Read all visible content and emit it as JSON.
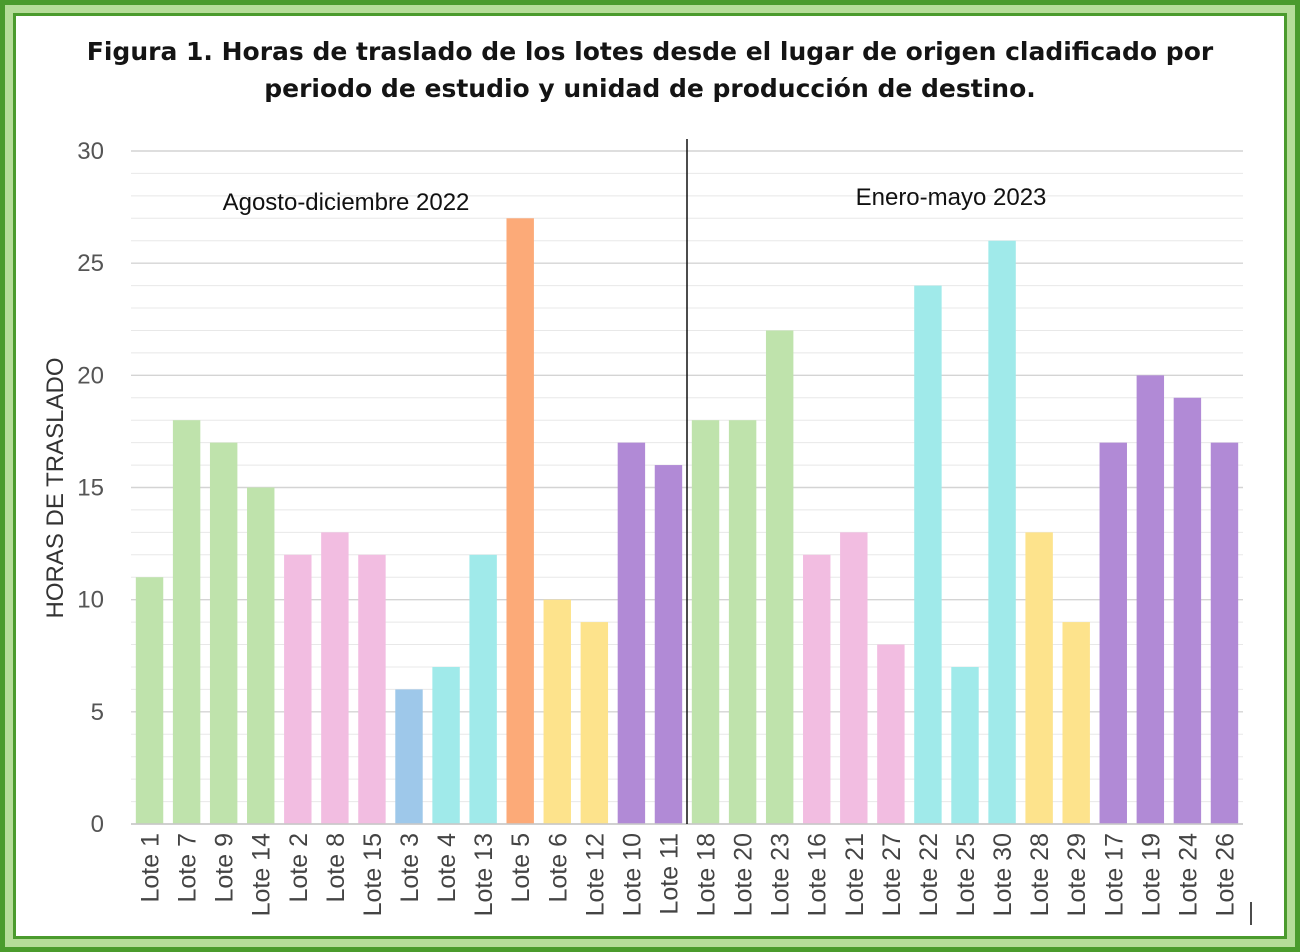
{
  "chart_data": {
    "type": "bar",
    "title_line1": "Figura 1. Horas de traslado de los lotes desde el lugar de origen cladificado por",
    "title_line2": "periodo de estudio y unidad de producción de destino.",
    "ylabel": "HORAS DE TRASLADO",
    "xlabel": "",
    "ylim": [
      0,
      30
    ],
    "yticks": [
      0,
      5,
      10,
      15,
      20,
      25,
      30
    ],
    "grid": true,
    "legend": "none",
    "periods": [
      {
        "label": "Agosto-diciembre 2022"
      },
      {
        "label": "Enero-mayo 2023"
      }
    ],
    "categories": [
      "Lote 1",
      "Lote 7",
      "Lote 9",
      "Lote 14",
      "Lote 2",
      "Lote 8",
      "Lote 15",
      "Lote 3",
      "Lote 4",
      "Lote 13",
      "Lote 5",
      "Lote 6",
      "Lote 12",
      "Lote 10",
      "Lote 11",
      "Lote 18",
      "Lote 20",
      "Lote 23",
      "Lote 16",
      "Lote 21",
      "Lote 27",
      "Lote 22",
      "Lote 25",
      "Lote 30",
      "Lote 28",
      "Lote 29",
      "Lote 17",
      "Lote 19",
      "Lote 24",
      "Lote 26"
    ],
    "values": [
      11,
      18,
      17,
      15,
      12,
      13,
      12,
      6,
      7,
      12,
      27,
      10,
      9,
      17,
      16,
      18,
      18,
      22,
      12,
      13,
      8,
      24,
      7,
      26,
      13,
      9,
      17,
      20,
      19,
      17
    ],
    "bar_colors": [
      "#bfe3ac",
      "#bfe3ac",
      "#bfe3ac",
      "#bfe3ac",
      "#f2bde1",
      "#f2bde1",
      "#f2bde1",
      "#9ec8ea",
      "#a0eaea",
      "#a0eaea",
      "#fcaa78",
      "#fde38c",
      "#fde38c",
      "#b18ad6",
      "#b18ad6",
      "#bfe3ac",
      "#bfe3ac",
      "#bfe3ac",
      "#f2bde1",
      "#f2bde1",
      "#f2bde1",
      "#a0eaea",
      "#a0eaea",
      "#a0eaea",
      "#fde38c",
      "#fde38c",
      "#b18ad6",
      "#b18ad6",
      "#b18ad6",
      "#b18ad6"
    ]
  }
}
